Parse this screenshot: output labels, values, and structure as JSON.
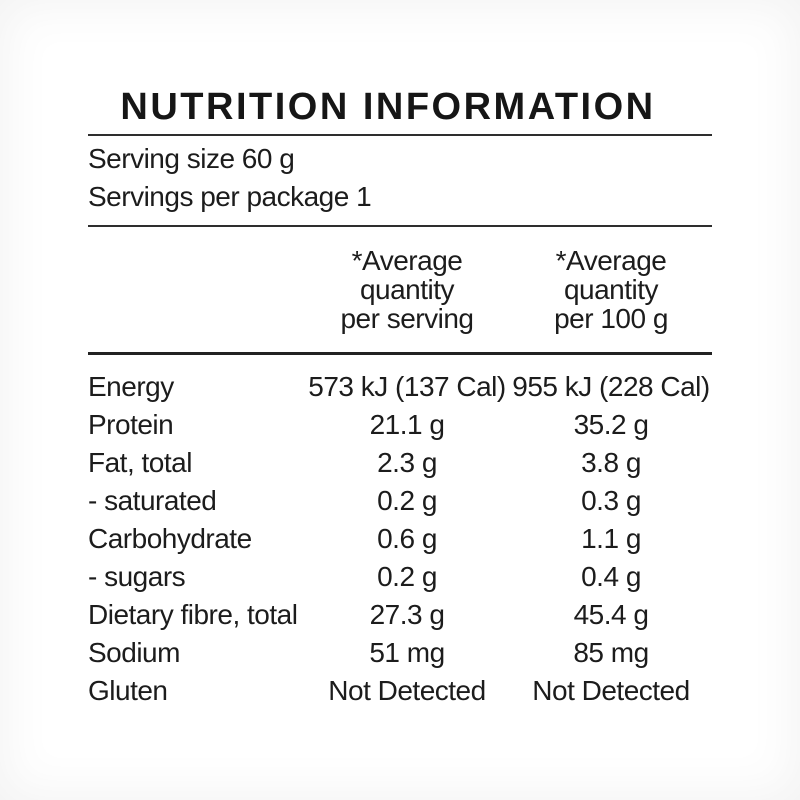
{
  "label": {
    "title": "NUTRITION INFORMATION",
    "serving_size": "Serving size 60 g",
    "servings_per_package": "Servings per package 1",
    "columns": {
      "per_serving": {
        "line1": "*Average",
        "line2": "quantity",
        "line3": "per serving"
      },
      "per_100g": {
        "line1": "*Average",
        "line2": "quantity",
        "line3": "per 100 g"
      }
    },
    "rows": [
      {
        "name": "Energy",
        "per_serving": "573 kJ (137 Cal)",
        "per_100g": "955 kJ (228 Cal)"
      },
      {
        "name": "Protein",
        "per_serving": "21.1 g",
        "per_100g": "35.2 g"
      },
      {
        "name": "Fat, total",
        "per_serving": "2.3 g",
        "per_100g": "3.8 g"
      },
      {
        "name": "- saturated",
        "per_serving": "0.2 g",
        "per_100g": "0.3 g"
      },
      {
        "name": "Carbohydrate",
        "per_serving": "0.6 g",
        "per_100g": "1.1 g"
      },
      {
        "name": "- sugars",
        "per_serving": "0.2 g",
        "per_100g": "0.4 g"
      },
      {
        "name": "Dietary fibre, total",
        "per_serving": "27.3 g",
        "per_100g": "45.4 g"
      },
      {
        "name": "Sodium",
        "per_serving": "51 mg",
        "per_100g": "85 mg"
      },
      {
        "name": "Gluten",
        "per_serving": "Not Detected",
        "per_100g": "Not Detected"
      }
    ],
    "colors": {
      "text": "#1c1c1c",
      "rule": "#2e2e2e",
      "background": "#ffffff"
    }
  }
}
